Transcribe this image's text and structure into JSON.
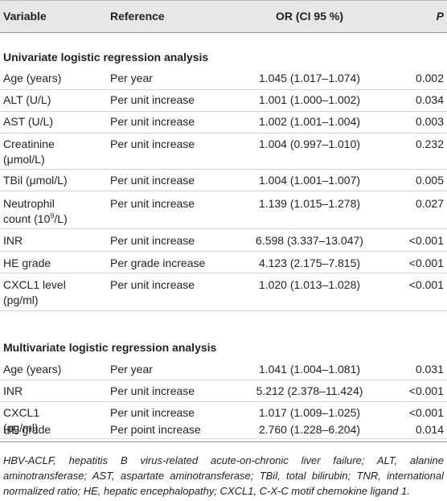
{
  "header": {
    "variable": "Variable",
    "reference": "Reference",
    "or": "OR (CI 95 %)",
    "p": "P"
  },
  "sections": [
    {
      "title": "Univariate logistic regression analysis",
      "rows": [
        {
          "variable": "Age (years)",
          "reference": "Per year",
          "or": "1.045 (1.017–1.074)",
          "p": "0.002"
        },
        {
          "variable": "ALT (U/L)",
          "reference": "Per unit increase",
          "or": "1.001 (1.000–1.002)",
          "p": "0.034"
        },
        {
          "variable": "AST (U/L)",
          "reference": "Per unit increase",
          "or": "1.002 (1.001–1.004)",
          "p": "0.003"
        },
        {
          "variable_line1": "Creatinine",
          "variable_line2": "(μmol/L)",
          "reference": "Per unit increase",
          "or": "1.004 (0.997–1.010)",
          "p": "0.232"
        },
        {
          "variable": "TBil (μmol/L)",
          "reference": "Per unit increase",
          "or": "1.004 (1.001–1.007)",
          "p": "0.005"
        },
        {
          "variable_line1": "Neutrophil",
          "variable_line2": "count (10",
          "variable_sup": "9",
          "variable_line2_end": "/L)",
          "reference": "Per unit increase",
          "or": "1.139 (1.015–1.278)",
          "p": "0.027"
        },
        {
          "variable": "INR",
          "reference": "Per unit increase",
          "or": "6.598 (3.337–13.047)",
          "p": "<0.001"
        },
        {
          "variable": "HE grade",
          "reference": "Per grade increase",
          "or": "4.123 (2.175–7.815)",
          "p": "<0.001"
        },
        {
          "variable_line1": "CXCL1 level",
          "variable_line2": "(pg/ml)",
          "reference": "Per unit increase",
          "or": "1.020 (1.013–1.028)",
          "p": "<0.001"
        }
      ]
    },
    {
      "title": "Multivariate logistic regression analysis",
      "rows": [
        {
          "variable": "Age (years)",
          "reference": "Per year",
          "or": "1.041 (1.004–1.081)",
          "p": "0.031"
        },
        {
          "variable": "INR",
          "reference": "Per unit increase",
          "or": "5.212 (2.378–11.424)",
          "p": "<0.001"
        },
        {
          "variable_line1": "CXCL1",
          "variable_line2": "(pg/ml)",
          "reference": "Per unit increase",
          "or": "1.017 (1.009–1.025)",
          "p": "<0.001"
        },
        {
          "variable": "HE grade",
          "reference": "Per point increase",
          "or": "2.760 (1.228–6.204)",
          "p": "0.014"
        }
      ]
    }
  ],
  "footnote": "HBV-ACLF, hepatitis B virus-related acute-on-chronic liver failure; ALT, alanine aminotransferase; AST, aspartate aminotransferase; TBil, total bilirubin; TNR, international normalized ratio; HE, hepatic encephalopathy; CXCL1, C-X-C motif chemokine ligand 1."
}
